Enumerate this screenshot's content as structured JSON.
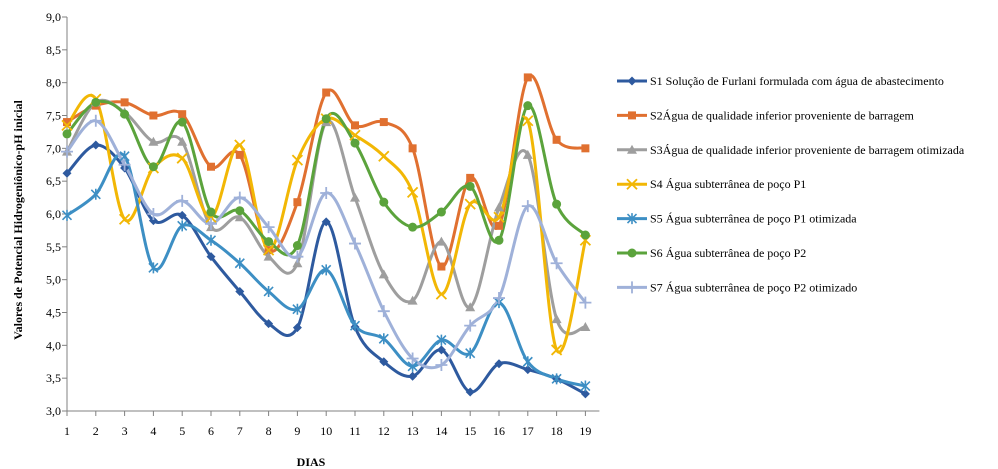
{
  "chart_data": {
    "type": "line",
    "xlabel": "DIAS",
    "ylabel": "Valores de Potencial Hidrogeniônico-pH inicial",
    "ylim": [
      3.0,
      9.0
    ],
    "yticks": [
      "3,0",
      "3,5",
      "4,0",
      "4,5",
      "5,0",
      "5,5",
      "6,0",
      "6,5",
      "7,0",
      "7,5",
      "8,0",
      "8,5",
      "9,0"
    ],
    "categories": [
      "1",
      "2",
      "3",
      "4",
      "5",
      "6",
      "7",
      "8",
      "9",
      "10",
      "11",
      "12",
      "13",
      "14",
      "15",
      "16",
      "17",
      "18",
      "19"
    ],
    "grid": false,
    "legend_position": "right",
    "series": [
      {
        "name": "S1 Solução de Furlani formulada com água de abastecimento",
        "color": "#2E5A9F",
        "marker": "diamond",
        "values": [
          6.62,
          7.05,
          6.7,
          5.9,
          5.98,
          5.35,
          4.82,
          4.33,
          4.27,
          5.88,
          4.28,
          3.75,
          3.53,
          3.93,
          3.29,
          3.72,
          3.63,
          3.49,
          3.26
        ]
      },
      {
        "name": "S2Água de qualidade inferior proveniente de barragem",
        "color": "#E07030",
        "marker": "square",
        "values": [
          7.4,
          7.65,
          7.7,
          7.5,
          7.52,
          6.72,
          6.9,
          5.45,
          6.18,
          7.85,
          7.35,
          7.4,
          7.0,
          5.2,
          6.55,
          5.82,
          8.08,
          7.13,
          7.0
        ]
      },
      {
        "name": "S3Água de qualidade inferior proveniente de barragem otimizada",
        "color": "#9E9E9E",
        "marker": "triangle",
        "values": [
          6.95,
          7.7,
          7.55,
          7.1,
          7.1,
          5.8,
          5.95,
          5.35,
          5.25,
          7.4,
          6.25,
          5.08,
          4.68,
          5.58,
          4.58,
          6.1,
          6.9,
          4.4,
          4.28
        ]
      },
      {
        "name": "S4 Água subterrânea de poço P1",
        "color": "#F2B705",
        "marker": "x",
        "values": [
          7.35,
          7.75,
          5.92,
          6.7,
          6.85,
          5.95,
          7.05,
          5.45,
          6.82,
          7.45,
          7.2,
          6.88,
          6.33,
          4.78,
          6.15,
          5.95,
          7.42,
          3.93,
          5.6
        ]
      },
      {
        "name": "S5 Água subterrânea de poço P1 otimizada",
        "color": "#3D8FC4",
        "marker": "star",
        "values": [
          5.98,
          6.3,
          6.88,
          5.18,
          5.82,
          5.6,
          5.25,
          4.82,
          4.55,
          5.15,
          4.3,
          4.1,
          3.68,
          4.08,
          3.88,
          4.65,
          3.75,
          3.49,
          3.38
        ]
      },
      {
        "name": "S6 Água subterrânea de poço P2",
        "color": "#5BA33C",
        "marker": "circle",
        "values": [
          7.22,
          7.7,
          7.52,
          6.72,
          7.4,
          6.03,
          6.05,
          5.58,
          5.52,
          7.45,
          7.08,
          6.18,
          5.8,
          6.03,
          6.42,
          5.6,
          7.65,
          6.15,
          5.68
        ]
      },
      {
        "name": "S7  Água subterrânea de poço P2 otimizado",
        "color": "#9FB1D9",
        "marker": "plus",
        "values": [
          6.95,
          7.42,
          6.75,
          6.0,
          6.2,
          5.85,
          6.25,
          5.8,
          5.35,
          6.32,
          5.55,
          4.52,
          3.8,
          3.7,
          4.3,
          4.72,
          6.12,
          5.25,
          4.65
        ]
      }
    ]
  }
}
